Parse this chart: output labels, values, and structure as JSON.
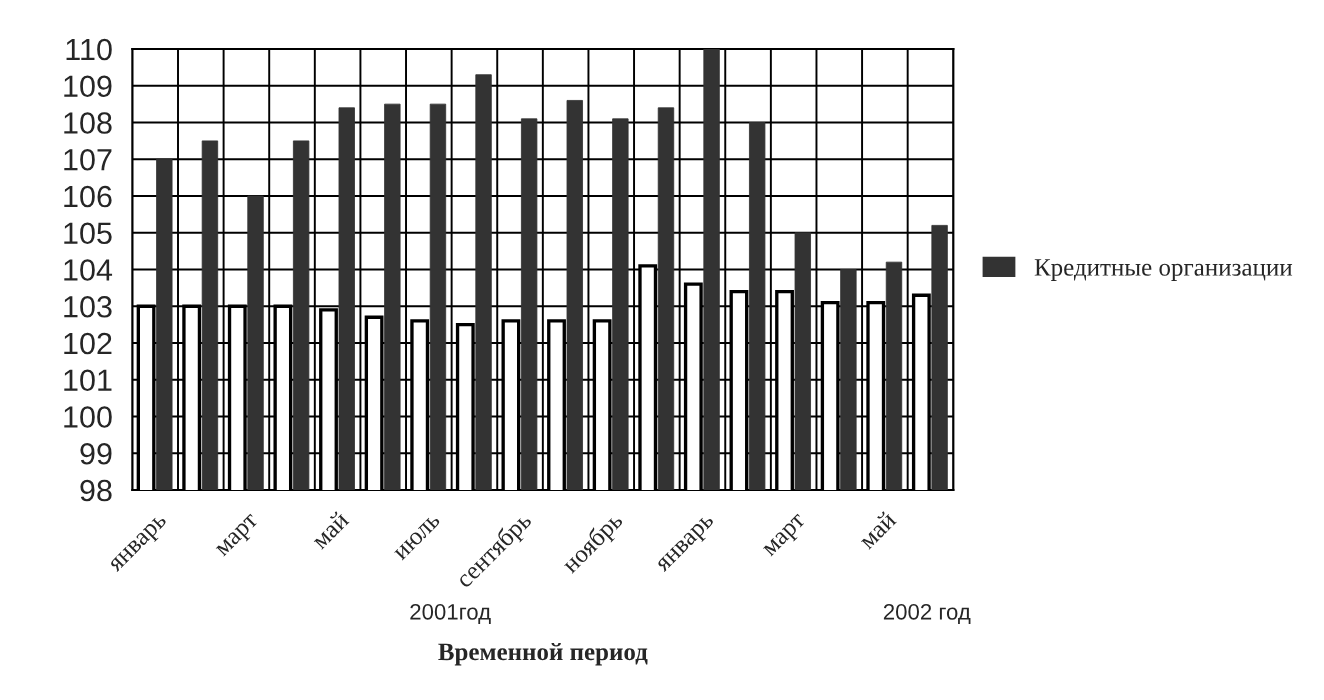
{
  "chart_data": {
    "type": "bar",
    "xlabel": "Временной период",
    "categories": [
      "январь",
      null,
      "март",
      null,
      "май",
      null,
      "июль",
      null,
      "сентябрь",
      null,
      "ноябрь",
      null,
      "январь",
      null,
      "март",
      null,
      "май",
      null
    ],
    "series": [
      {
        "color": "#ffffff",
        "values": [
          103,
          103,
          103,
          103,
          102.9,
          102.7,
          102.6,
          102.5,
          102.6,
          102.6,
          102.6,
          104.1,
          103.6,
          103.4,
          103.4,
          103.1,
          103.1,
          103.3
        ]
      },
      {
        "name": "Кредитные организации",
        "color": "#333333",
        "values": [
          107,
          107.5,
          106,
          107.5,
          108.4,
          108.5,
          108.5,
          109.3,
          108.1,
          108.6,
          108.1,
          108.4,
          110,
          108,
          105,
          104,
          104.2,
          105.2
        ]
      }
    ],
    "ylim": [
      98,
      110
    ],
    "yticks": [
      98,
      99,
      100,
      101,
      102,
      103,
      104,
      105,
      106,
      107,
      108,
      109,
      110
    ],
    "grid": true,
    "legend": "right",
    "annotations": [
      "2001год",
      "2002 год"
    ]
  }
}
